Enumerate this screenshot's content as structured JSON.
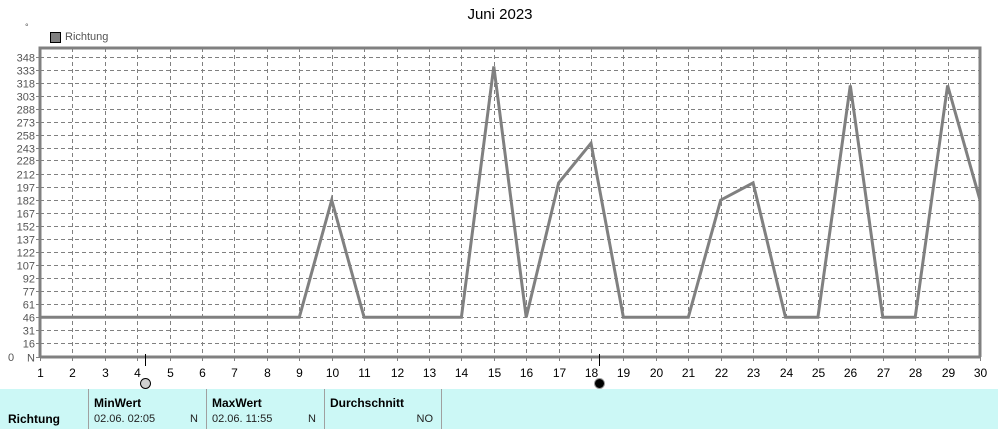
{
  "header": {
    "title": "Juni 2023",
    "unit_symbol": "°"
  },
  "legend": {
    "label": "Richtung",
    "color": "#808080"
  },
  "chart_data": {
    "type": "line",
    "title": "Juni 2023",
    "xlabel": "",
    "ylabel": "°",
    "x": [
      1,
      2,
      3,
      4,
      5,
      6,
      7,
      8,
      9,
      10,
      11,
      12,
      13,
      14,
      15,
      16,
      17,
      18,
      19,
      20,
      21,
      22,
      23,
      24,
      25,
      26,
      27,
      28,
      29,
      30
    ],
    "series": [
      {
        "name": "Richtung",
        "color": "#808080",
        "values": [
          46,
          46,
          46,
          46,
          46,
          46,
          46,
          46,
          46,
          182,
          46,
          46,
          46,
          46,
          337,
          46,
          202,
          248,
          46,
          46,
          46,
          182,
          202,
          46,
          46,
          315,
          46,
          46,
          315,
          182
        ]
      }
    ],
    "ylim": [
      0,
      348
    ],
    "yticks": [
      0,
      16,
      31,
      46,
      61,
      77,
      92,
      107,
      122,
      137,
      152,
      167,
      182,
      197,
      212,
      228,
      243,
      258,
      273,
      288,
      303,
      318,
      333,
      348
    ],
    "ytick_labels": [
      "N",
      "16",
      "31",
      "46",
      "61",
      "77",
      "92",
      "107",
      "122",
      "137",
      "152",
      "167",
      "182",
      "197",
      "212",
      "228",
      "243",
      "258",
      "273",
      "288",
      "303",
      "318",
      "333",
      "348"
    ],
    "y_extra_label": "0",
    "xticks": [
      "1",
      "2",
      "3",
      "4",
      "5",
      "6",
      "7",
      "8",
      "9",
      "10",
      "11",
      "12",
      "13",
      "14",
      "15",
      "16",
      "17",
      "18",
      "19",
      "20",
      "21",
      "22",
      "23",
      "24",
      "25",
      "26",
      "27",
      "28",
      "29",
      "30"
    ],
    "grid": true,
    "legend_position": "top-left",
    "markers": [
      {
        "type": "min",
        "x": 4.25,
        "style": "open-circle"
      },
      {
        "type": "max",
        "x": 18.25,
        "style": "filled-circle"
      }
    ]
  },
  "stats_panel": {
    "row_label": "Richtung",
    "columns": [
      {
        "header": "MinWert",
        "value": "02.06.  02:05",
        "direction": "N"
      },
      {
        "header": "MaxWert",
        "value": "02.06.  11:55",
        "direction": "N"
      },
      {
        "header": "Durchschnitt",
        "value": "",
        "direction": "NO"
      }
    ]
  }
}
